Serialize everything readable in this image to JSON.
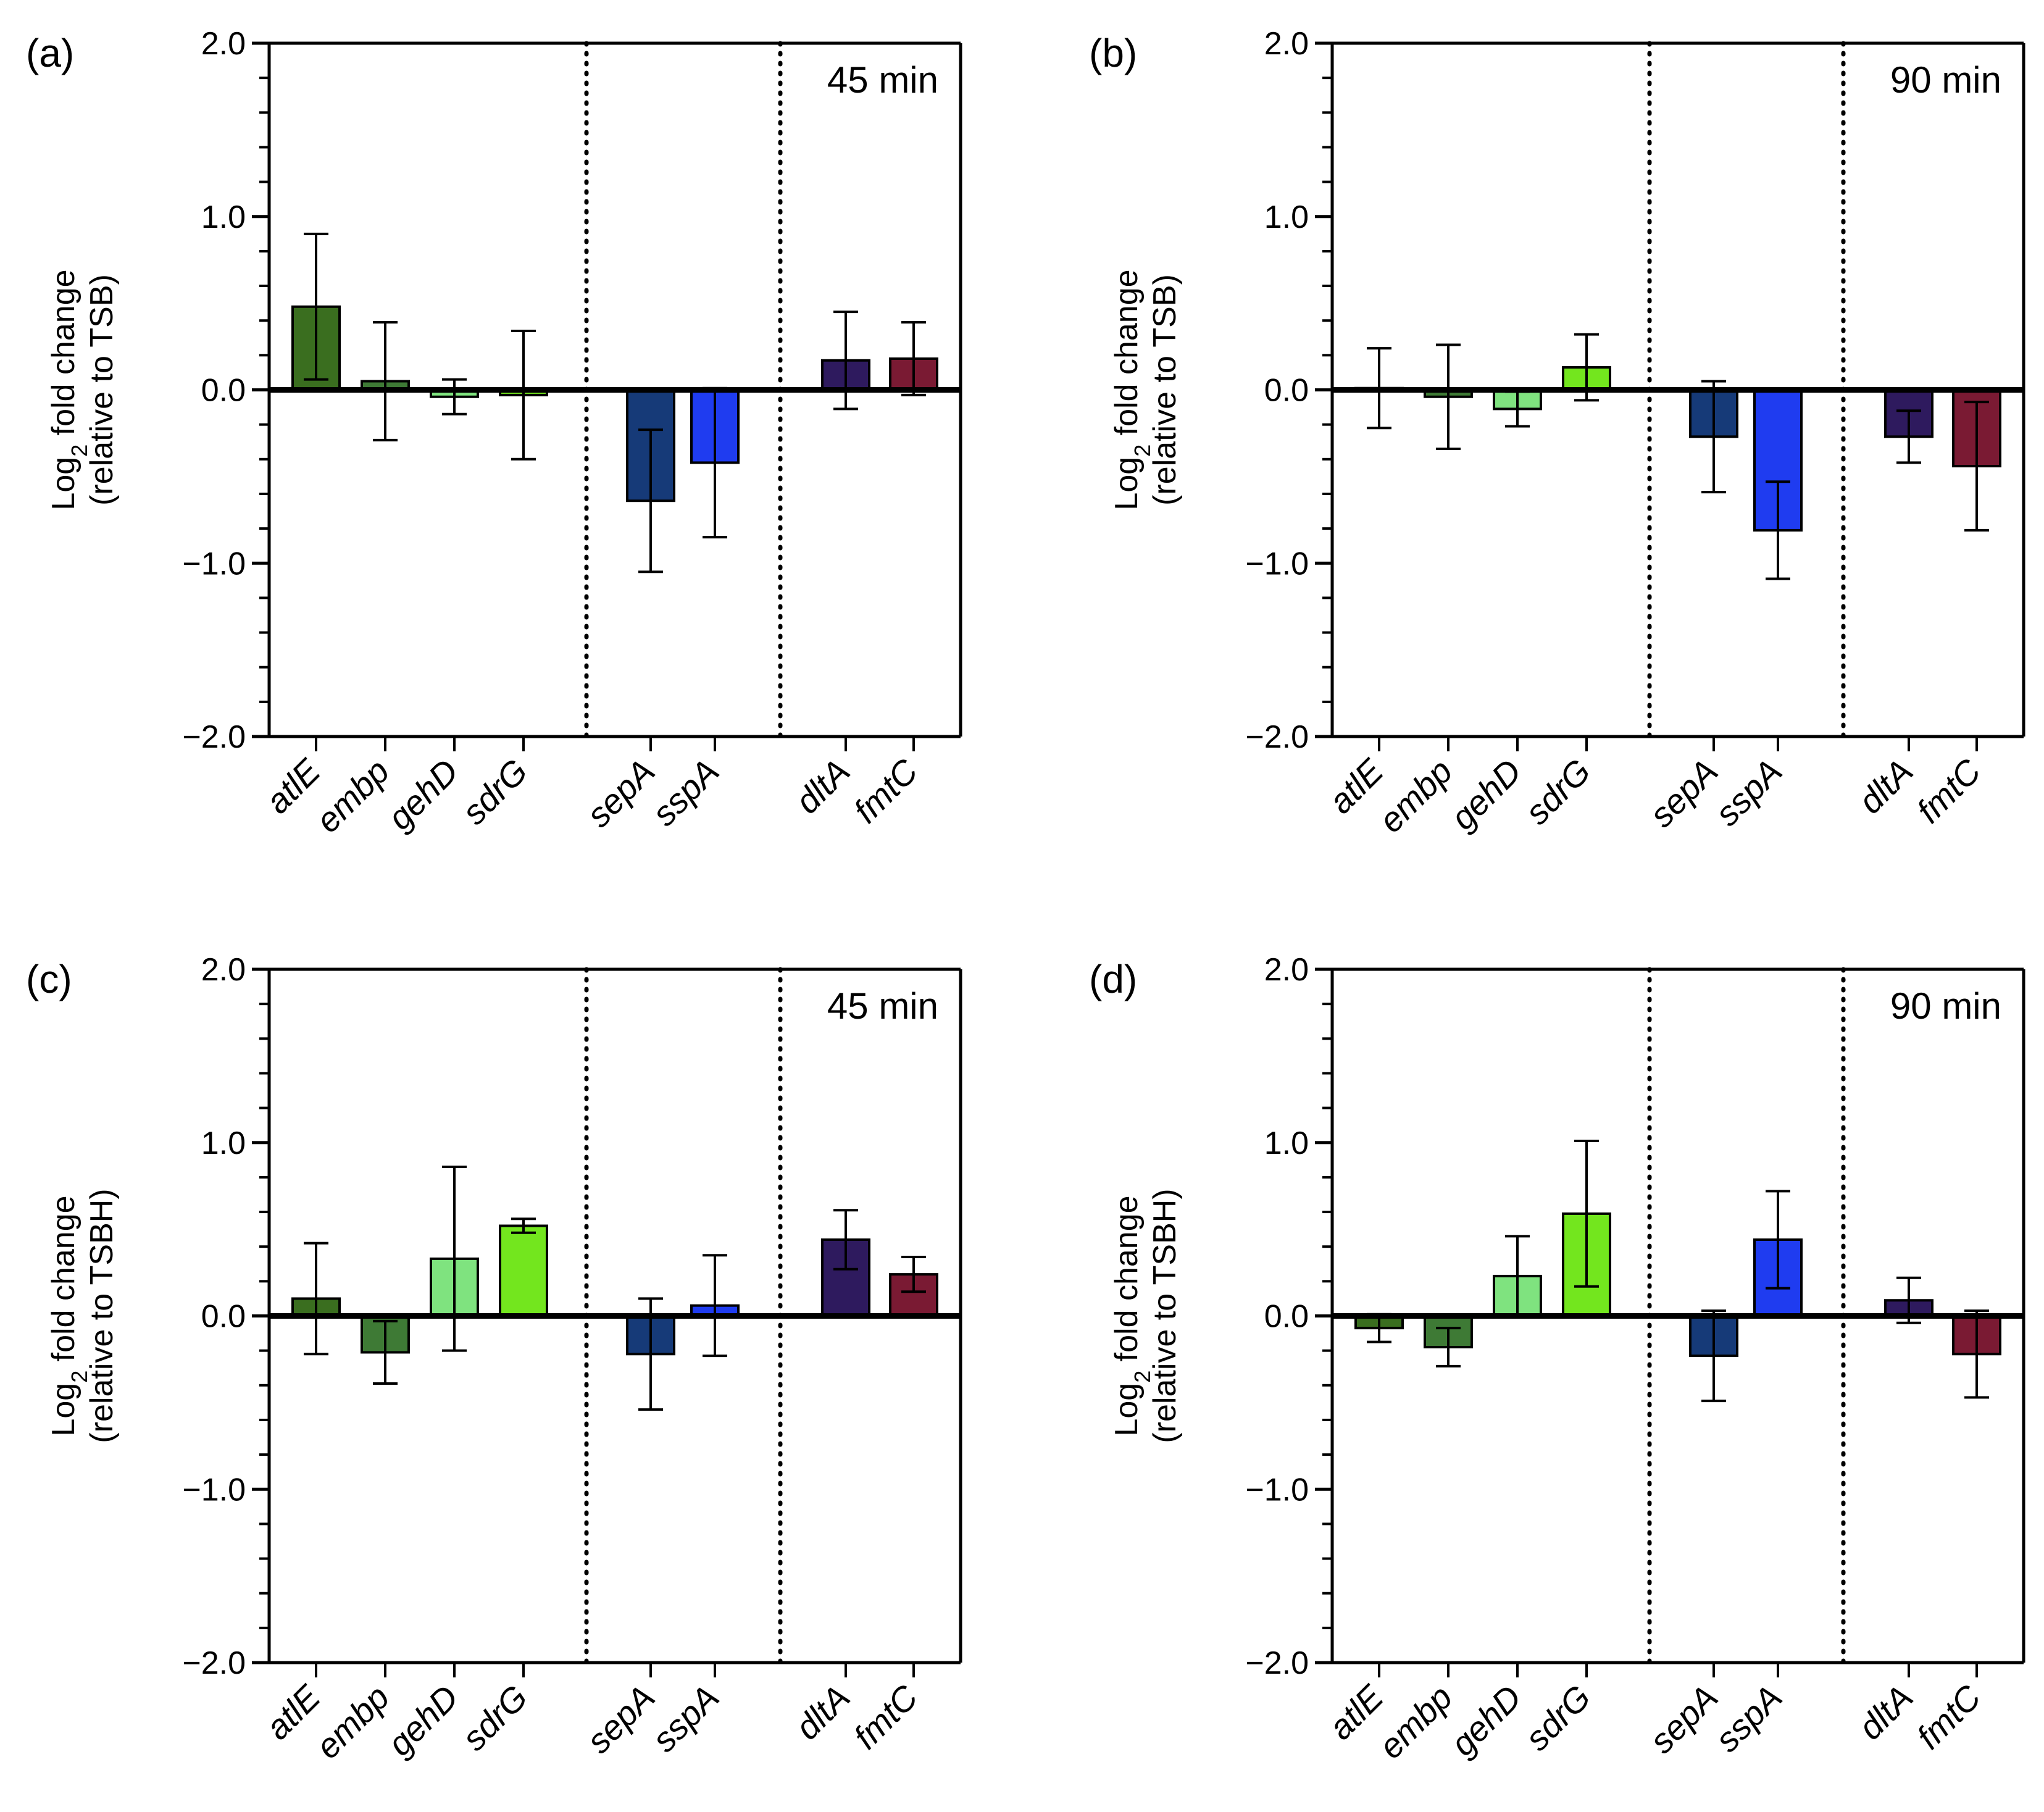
{
  "figure": {
    "colors": {
      "atlE": "#3a6e1f",
      "embp": "#3e7a35",
      "gehD": "#7fe37f",
      "sdrG": "#73e61e",
      "sepA": "#163a78",
      "sspA": "#1f3cf0",
      "dltA": "#2e1a5e",
      "fmtC": "#7a1a33",
      "axis": "#000000"
    }
  },
  "chart_data": [
    {
      "panel": "(a)",
      "type": "bar",
      "time": "45 min",
      "ylabel_line1": "Log",
      "ylabel_sub": "2",
      "ylabel_line1_rest": " fold change",
      "ylabel_line2": "(relative to TSB)",
      "ylim": [
        -2.0,
        2.0
      ],
      "yticks": [
        "2.0",
        "1.0",
        "0.0",
        "−1.0",
        "−2.0"
      ],
      "categories": [
        "atlE",
        "embp",
        "gehD",
        "sdrG",
        "sepA",
        "sspA",
        "dltA",
        "fmtC"
      ],
      "values": [
        0.48,
        0.05,
        -0.04,
        -0.03,
        -0.64,
        -0.42,
        0.17,
        0.18
      ],
      "errors": [
        0.42,
        0.34,
        0.1,
        0.37,
        0.41,
        0.43,
        0.28,
        0.21
      ],
      "groups": [
        [
          0,
          3
        ],
        [
          4,
          5
        ],
        [
          6,
          7
        ]
      ]
    },
    {
      "panel": "(b)",
      "type": "bar",
      "time": "90 min",
      "ylabel_line1": "Log",
      "ylabel_sub": "2",
      "ylabel_line1_rest": " fold change",
      "ylabel_line2": "(relative to TSB)",
      "ylim": [
        -2.0,
        2.0
      ],
      "yticks": [
        "2.0",
        "1.0",
        "0.0",
        "−1.0",
        "−2.0"
      ],
      "categories": [
        "atlE",
        "embp",
        "gehD",
        "sdrG",
        "sepA",
        "sspA",
        "dltA",
        "fmtC"
      ],
      "values": [
        0.01,
        -0.04,
        -0.11,
        0.13,
        -0.27,
        -0.81,
        -0.27,
        -0.44
      ],
      "errors": [
        0.23,
        0.3,
        0.1,
        0.19,
        0.32,
        0.28,
        0.15,
        0.37
      ],
      "groups": [
        [
          0,
          3
        ],
        [
          4,
          5
        ],
        [
          6,
          7
        ]
      ]
    },
    {
      "panel": "(c)",
      "type": "bar",
      "time": "45 min",
      "ylabel_line1": "Log",
      "ylabel_sub": "2",
      "ylabel_line1_rest": " fold change",
      "ylabel_line2": "(relative to TSBH)",
      "ylim": [
        -2.0,
        2.0
      ],
      "yticks": [
        "2.0",
        "1.0",
        "0.0",
        "−1.0",
        "−2.0"
      ],
      "categories": [
        "atlE",
        "embp",
        "gehD",
        "sdrG",
        "sepA",
        "sspA",
        "dltA",
        "fmtC"
      ],
      "values": [
        0.1,
        -0.21,
        0.33,
        0.52,
        -0.22,
        0.06,
        0.44,
        0.24
      ],
      "errors": [
        0.32,
        0.18,
        0.53,
        0.04,
        0.32,
        0.29,
        0.17,
        0.1
      ],
      "groups": [
        [
          0,
          3
        ],
        [
          4,
          5
        ],
        [
          6,
          7
        ]
      ]
    },
    {
      "panel": "(d)",
      "type": "bar",
      "time": "90 min",
      "ylabel_line1": "Log",
      "ylabel_sub": "2",
      "ylabel_line1_rest": " fold change",
      "ylabel_line2": "(relative to TSBH)",
      "ylim": [
        -2.0,
        2.0
      ],
      "yticks": [
        "2.0",
        "1.0",
        "0.0",
        "−1.0",
        "−2.0"
      ],
      "categories": [
        "atlE",
        "embp",
        "gehD",
        "sdrG",
        "sepA",
        "sspA",
        "dltA",
        "fmtC"
      ],
      "values": [
        -0.07,
        -0.18,
        0.23,
        0.59,
        -0.23,
        0.44,
        0.09,
        -0.22
      ],
      "errors": [
        0.08,
        0.11,
        0.23,
        0.42,
        0.26,
        0.28,
        0.13,
        0.25
      ],
      "groups": [
        [
          0,
          3
        ],
        [
          4,
          5
        ],
        [
          6,
          7
        ]
      ]
    }
  ]
}
